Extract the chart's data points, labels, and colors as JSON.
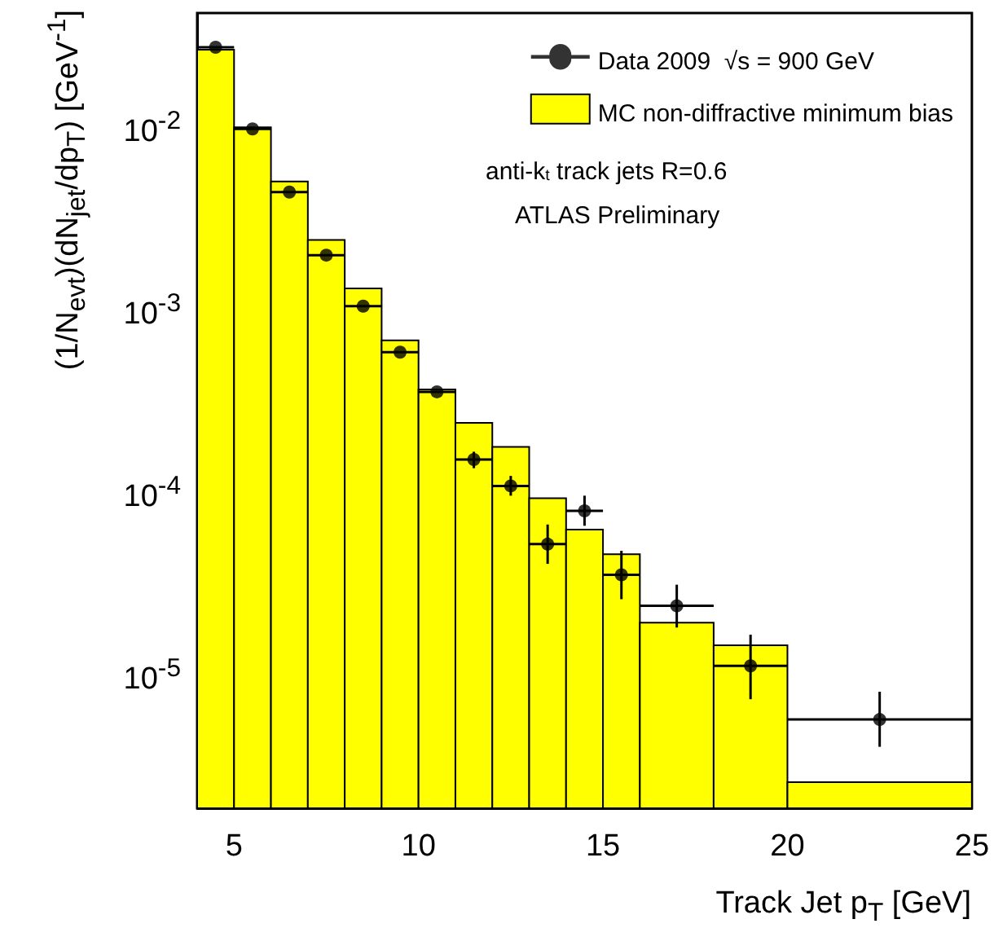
{
  "chart_data": {
    "type": "histogram",
    "xlabel": "Track Jet p$_{T}$ [GeV]",
    "ylabel": "(1/N$_{evt}$)(dN$_{jet}$/dp$_{T}$) [GeV$^{-1}$]",
    "annotations": [
      "anti-k$_{t}$ track jets R=0.6",
      "ATLAS Preliminary"
    ],
    "log": "y",
    "xlim": [
      4,
      25
    ],
    "xticks": [
      5,
      10,
      15,
      20,
      25
    ],
    "ylim": [
      1.8e-06,
      0.04
    ],
    "yticks": [
      {
        "value": 1e-05,
        "label": "10$^{-5}$"
      },
      {
        "value": 0.0001,
        "label": "10$^{-4}$"
      },
      {
        "value": 0.001,
        "label": "10$^{-3}$"
      },
      {
        "value": 0.01,
        "label": "10$^{-2}$"
      }
    ],
    "legend": "top right",
    "grid": false,
    "series": [
      {
        "name": "MC non-diffractive minimum bias",
        "color": "#ffff00",
        "bins": [
          4,
          5,
          6,
          7,
          8,
          9,
          10,
          11,
          12,
          13,
          14,
          15,
          16,
          18,
          20,
          25
        ],
        "values": [
          0.0252,
          0.0095,
          0.0048,
          0.0023,
          0.00125,
          0.00065,
          0.00035,
          0.00023,
          0.00017,
          8.9e-05,
          6e-05,
          4.4e-05,
          1.86e-05,
          1.4e-05,
          2.5e-06
        ]
      },
      {
        "type": "scatter",
        "name": "Data 2009  √s = 900 GeV",
        "color": "#000000",
        "marker": "circle",
        "x": [
          4.5,
          5.5,
          6.5,
          7.5,
          8.5,
          9.5,
          10.5,
          11.5,
          12.5,
          13.5,
          14.5,
          15.5,
          17,
          19,
          22.5
        ],
        "values": [
          0.026,
          0.0093,
          0.0042,
          0.0019,
          0.001,
          0.00056,
          0.00034,
          0.000145,
          0.000104,
          5e-05,
          7.6e-05,
          3.4e-05,
          2.3e-05,
          1.08e-05,
          5.5e-06
        ],
        "xerrors": [
          0.5,
          0.5,
          0.5,
          0.5,
          0.5,
          0.5,
          0.5,
          0.5,
          0.5,
          0.5,
          0.5,
          0.5,
          1,
          1,
          2.5
        ],
        "errors": [
          null,
          null,
          null,
          null,
          null,
          null,
          null,
          [
            0.00013,
            0.00016
          ],
          [
            9.2e-05,
            0.000118
          ],
          [
            3.9e-05,
            6.4e-05
          ],
          [
            6.3e-05,
            9.2e-05
          ],
          [
            2.5e-05,
            4.6e-05
          ],
          [
            1.75e-05,
            3e-05
          ],
          [
            7.1e-06,
            1.6e-05
          ],
          [
            3.9e-06,
            7.8e-06
          ]
        ]
      }
    ]
  }
}
